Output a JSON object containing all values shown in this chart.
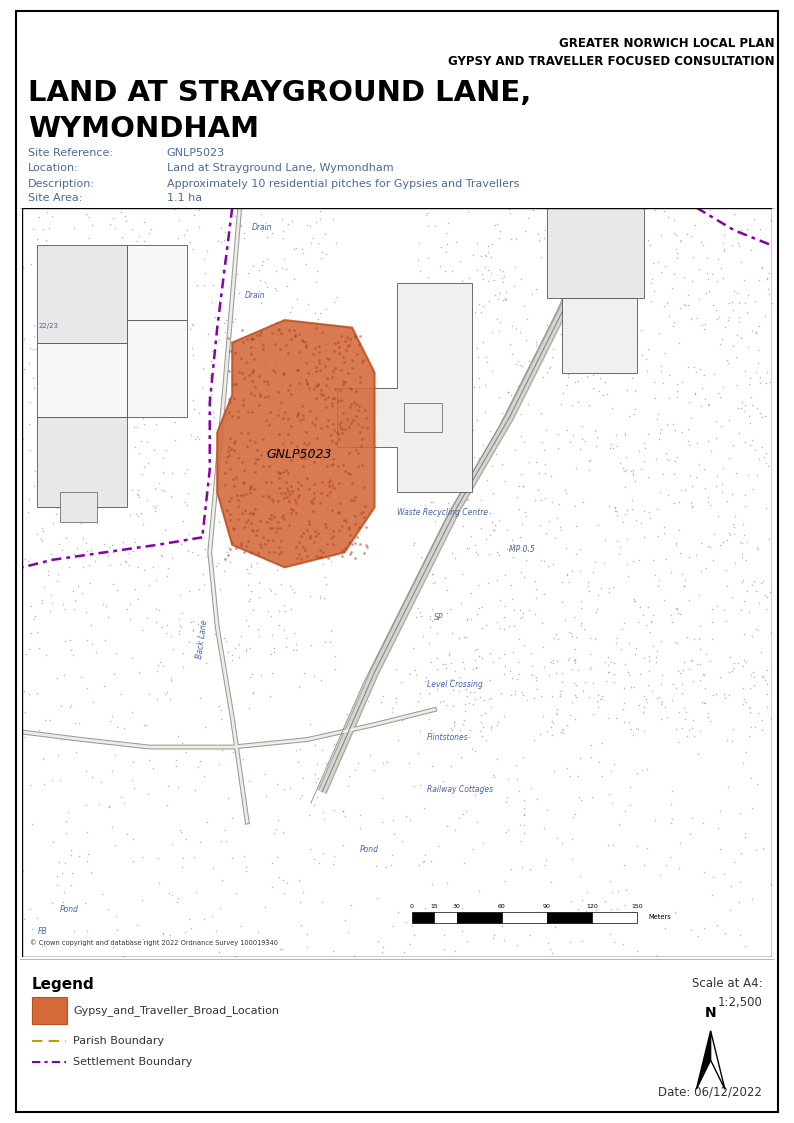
{
  "header_right_line1": "GREATER NORWICH LOCAL PLAN",
  "header_right_line2": "GYPSY AND TRAVELLER FOCUSED CONSULTATION",
  "main_title_line1": "LAND AT STRAYGROUND LANE,",
  "main_title_line2": "WYMONDHAM",
  "site_reference_label": "Site Reference:",
  "site_reference_value": "GNLP5023",
  "location_label": "Location:",
  "location_value": "Land at Strayground Lane, Wymondham",
  "description_label": "Description:",
  "description_value": "Approximately 10 residential pitches for Gypsies and Travellers",
  "site_area_label": "Site Area:",
  "site_area_value": "1.1 ha",
  "copyright_text": "© Crown copyright and database right 2022 Ordnance Survey 100019340",
  "scale_bar_values": [
    "0",
    "15",
    "30",
    "60",
    "90",
    "120",
    "150"
  ],
  "scale_bar_unit": "Meters",
  "legend_title": "Legend",
  "legend_item1_label": "Gypsy_and_Traveller_Broad_Location",
  "legend_item2_label": "Parish Boundary",
  "legend_item3_label": "Settlement Boundary",
  "scale_text": "Scale at A4:",
  "scale_value": "1:2,500",
  "date_text": "Date: 06/12/2022",
  "background_color": "#ffffff",
  "map_bg_color": "#f0ede5",
  "site_fill_color": "#D4693A",
  "site_edge_color": "#C05020",
  "site_label": "GNLP5023",
  "border_color": "#000000",
  "info_text_color": "#4B6A9A",
  "header_text_color": "#000000",
  "map_text_color": "#4466aa",
  "building_color": "#e8e8e8",
  "building_edge_color": "#555555",
  "road_outer_color": "#aaaaaa",
  "road_inner_color": "#e0ddd5",
  "rail_color": "#888888",
  "parish_color": "#B8A000",
  "settlement_color": "#8800aa"
}
